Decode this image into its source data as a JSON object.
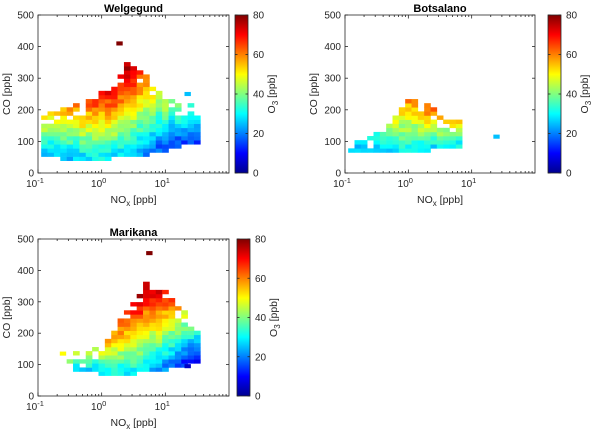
{
  "colorbar_label": "O3 [ppb]",
  "colormap": [
    "#00008f",
    "#0000ff",
    "#0080ff",
    "#00ffff",
    "#80ff80",
    "#ffff00",
    "#ff8000",
    "#ff0000",
    "#800000"
  ],
  "chart_data": [
    {
      "type": "heatmap",
      "title": "Welgegund",
      "xlabel": "NOx [ppb]",
      "ylabel": "CO [ppb]",
      "xscale": "log",
      "xlim": [
        0.1,
        100
      ],
      "ylim": [
        0,
        500
      ],
      "x_ticks": [
        0.1,
        1,
        10
      ],
      "x_tick_labels": [
        "10-1",
        "100",
        "101"
      ],
      "y_ticks": [
        0,
        100,
        200,
        300,
        400,
        500
      ],
      "colorbar": {
        "label": "O3 [ppb]",
        "range": [
          0,
          80
        ],
        "ticks": [
          0,
          20,
          40,
          60,
          80
        ]
      },
      "cell_width_decades": 0.1,
      "cell_height_ppb": 13,
      "profile": {
        "x_decade_centers": [
          -1.0,
          -0.8,
          -0.6,
          -0.4,
          -0.2,
          0.0,
          0.2,
          0.4,
          0.6,
          0.8,
          1.0,
          1.2,
          1.4
        ],
        "co_min": [
          60,
          55,
          50,
          50,
          50,
          50,
          55,
          60,
          60,
          70,
          80,
          90,
          100
        ],
        "co_max": [
          165,
          175,
          190,
          210,
          230,
          260,
          300,
          340,
          300,
          270,
          240,
          220,
          200
        ],
        "o3_at_co_min": [
          22,
          25,
          25,
          28,
          30,
          30,
          28,
          25,
          22,
          18,
          15,
          15,
          15
        ],
        "o3_at_co_max": [
          55,
          55,
          58,
          62,
          66,
          72,
          78,
          78,
          66,
          55,
          48,
          40,
          35
        ]
      },
      "outliers": [
        {
          "x": 1.7,
          "y": 410,
          "o3": 80
        },
        {
          "x": 20,
          "y": 250,
          "o3": 25
        }
      ]
    },
    {
      "type": "heatmap",
      "title": "Botsalano",
      "xlabel": "NOx [ppb]",
      "ylabel": "CO [ppb]",
      "xscale": "log",
      "xlim": [
        0.1,
        100
      ],
      "ylim": [
        0,
        500
      ],
      "x_ticks": [
        0.1,
        1,
        10
      ],
      "x_tick_labels": [
        "10-1",
        "100",
        "101"
      ],
      "y_ticks": [
        0,
        100,
        200,
        300,
        400,
        500
      ],
      "colorbar": {
        "label": "O3 [ppb]",
        "range": [
          0,
          80
        ],
        "ticks": [
          0,
          20,
          40,
          60,
          80
        ]
      },
      "cell_width_decades": 0.1,
      "cell_height_ppb": 13,
      "profile": {
        "x_decade_centers": [
          -0.8,
          -0.6,
          -0.4,
          -0.2,
          0.0,
          0.2,
          0.4,
          0.6
        ],
        "co_min": [
          75,
          75,
          70,
          70,
          70,
          75,
          80,
          90
        ],
        "co_max": [
          90,
          110,
          150,
          200,
          230,
          220,
          200,
          170
        ],
        "o3_at_co_min": [
          25,
          25,
          28,
          30,
          30,
          30,
          28,
          30
        ],
        "o3_at_co_max": [
          30,
          35,
          45,
          55,
          60,
          65,
          62,
          55
        ]
      },
      "outliers": [
        {
          "x": 22,
          "y": 115,
          "o3": 25
        }
      ]
    },
    {
      "type": "heatmap",
      "title": "Marikana",
      "xlabel": "NOx [ppb]",
      "ylabel": "CO [ppb]",
      "xscale": "log",
      "xlim": [
        0.1,
        100
      ],
      "ylim": [
        0,
        500
      ],
      "x_ticks": [
        0.1,
        1,
        10
      ],
      "x_tick_labels": [
        "10-1",
        "100",
        "101"
      ],
      "y_ticks": [
        0,
        100,
        200,
        300,
        400,
        500
      ],
      "colorbar": {
        "label": "O3 [ppb]",
        "range": [
          0,
          80
        ],
        "ticks": [
          0,
          20,
          40,
          60,
          80
        ]
      },
      "cell_width_decades": 0.1,
      "cell_height_ppb": 13,
      "profile": {
        "x_decade_centers": [
          -0.4,
          -0.2,
          0.0,
          0.2,
          0.4,
          0.6,
          0.8,
          1.0,
          1.2,
          1.4
        ],
        "co_min": [
          80,
          80,
          75,
          75,
          75,
          80,
          85,
          90,
          100,
          110
        ],
        "co_max": [
          120,
          140,
          170,
          230,
          290,
          350,
          360,
          320,
          280,
          200
        ],
        "o3_at_co_min": [
          28,
          28,
          30,
          30,
          30,
          28,
          25,
          20,
          15,
          10
        ],
        "o3_at_co_max": [
          45,
          48,
          55,
          65,
          75,
          80,
          78,
          68,
          55,
          35
        ]
      },
      "outliers": [
        {
          "x": 5,
          "y": 455,
          "o3": 80
        },
        {
          "x": 0.22,
          "y": 135,
          "o3": 50
        },
        {
          "x": 20,
          "y": 95,
          "o3": 5
        }
      ]
    }
  ]
}
